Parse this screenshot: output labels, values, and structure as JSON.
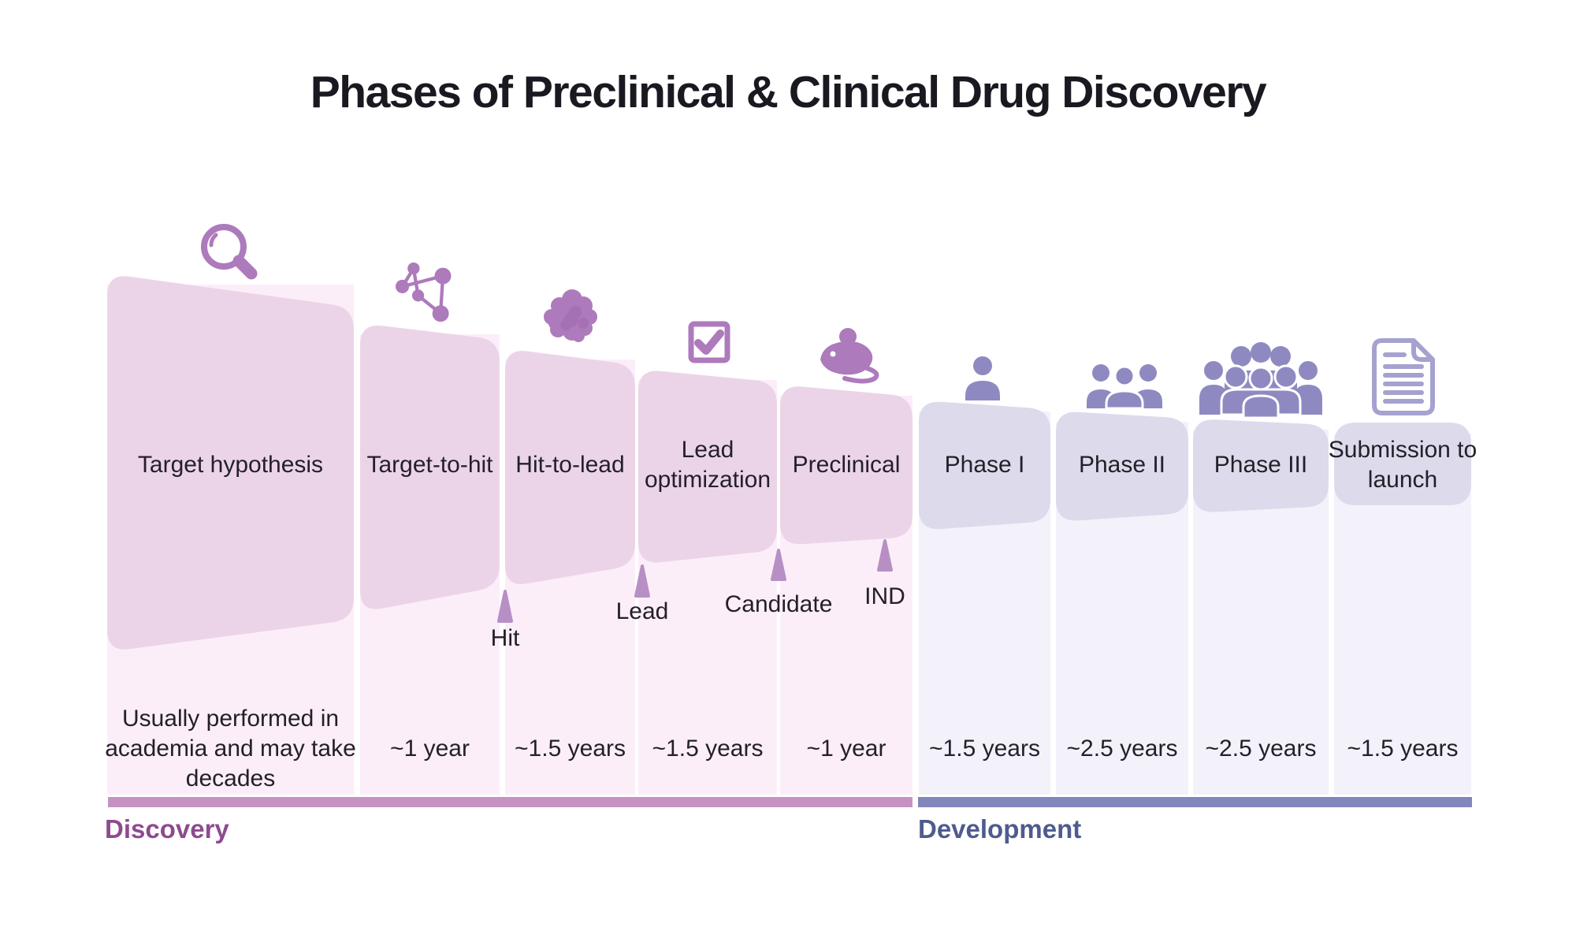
{
  "title": "Phases of Preclinical & Clinical Drug Discovery",
  "sections": {
    "discovery": {
      "label": "Discovery"
    },
    "development": {
      "label": "Development"
    }
  },
  "phases": [
    {
      "id": "target-hypothesis",
      "section": "discovery",
      "label": "Target hypothesis",
      "duration": "Usually performed in academia and may take decades",
      "icon": "magnifier-icon"
    },
    {
      "id": "target-to-hit",
      "section": "discovery",
      "label": "Target-to-hit",
      "duration": "~1 year",
      "icon": "molecule-icon"
    },
    {
      "id": "hit-to-lead",
      "section": "discovery",
      "label": "Hit-to-lead",
      "duration": "~1.5 years",
      "icon": "protein-blob-icon"
    },
    {
      "id": "lead-optimization",
      "section": "discovery",
      "label": "Lead optimization",
      "duration": "~1.5 years",
      "icon": "checkbox-icon"
    },
    {
      "id": "preclinical",
      "section": "discovery",
      "label": "Preclinical",
      "duration": "~1 year",
      "icon": "mouse-icon"
    },
    {
      "id": "phase-1",
      "section": "development",
      "label": "Phase I",
      "duration": "~1.5 years",
      "icon": "person-icon"
    },
    {
      "id": "phase-2",
      "section": "development",
      "label": "Phase II",
      "duration": "~2.5 years",
      "icon": "small-group-icon"
    },
    {
      "id": "phase-3",
      "section": "development",
      "label": "Phase III",
      "duration": "~2.5 years",
      "icon": "large-group-icon"
    },
    {
      "id": "submission-to-launch",
      "section": "development",
      "label": "Submission to launch",
      "duration": "~1.5 years",
      "icon": "document-icon"
    }
  ],
  "milestones": [
    {
      "label": "Hit"
    },
    {
      "label": "Lead"
    },
    {
      "label": "Candidate"
    },
    {
      "label": "IND"
    }
  ],
  "palette": {
    "title_text": "#1a1820",
    "body_text": "#232029",
    "cap_discovery": "#ecd4e8",
    "strip_discovery": "#fbeef9",
    "cap_development": "#dddaec",
    "strip_development": "#f3f2fa",
    "icon_discovery": "#ad7abc",
    "icon_discovery_dark": "#9e68ad",
    "icon_development": "#8e8ac1",
    "icon_document": "#a5a2d0",
    "milestone_marker": "#b78fc5",
    "bar_discovery": "#c592c3",
    "bar_development": "#8186bc",
    "discovery_label": "#8e4a90",
    "development_label": "#4f5b8f"
  }
}
